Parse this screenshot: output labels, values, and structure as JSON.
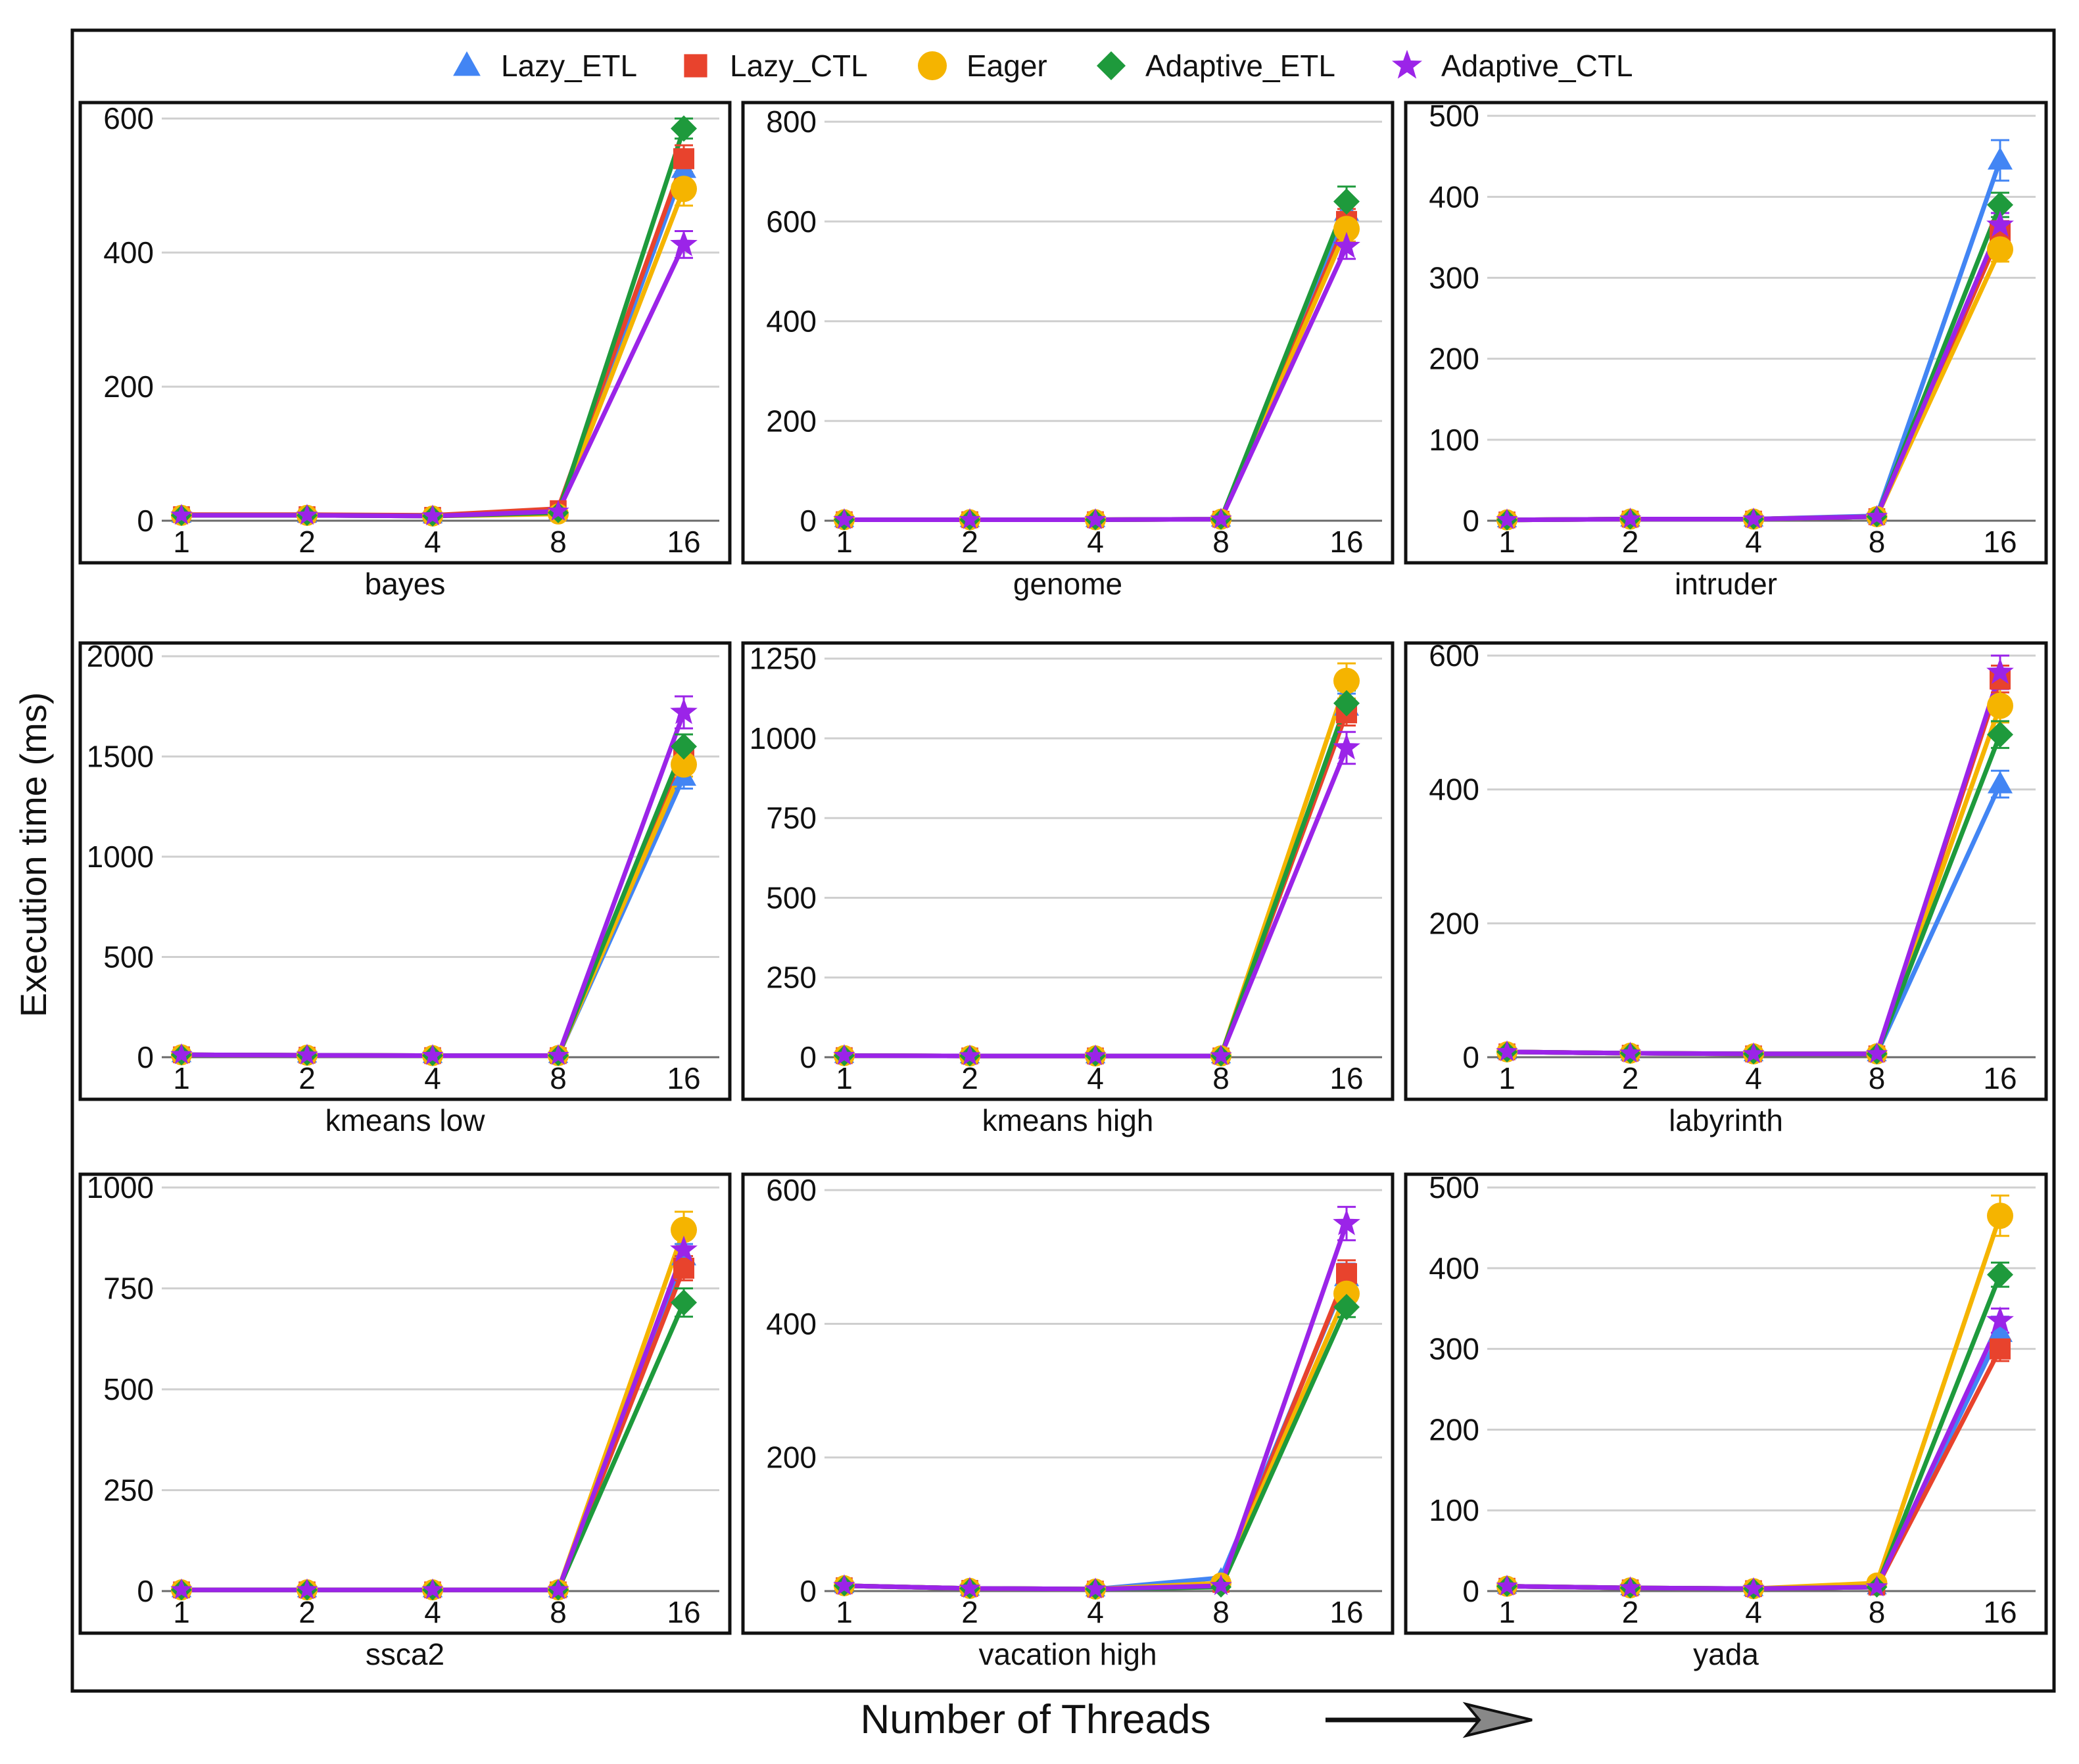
{
  "chart_data": {
    "type": "line",
    "layout": "3x3 small multiples",
    "ylabel": "Execution time (ms)",
    "xlabel": "Number of Threads",
    "x": [
      1,
      2,
      4,
      8,
      16
    ],
    "x_tick_labels": [
      "1",
      "2",
      "4",
      "8",
      "16"
    ],
    "legend": {
      "placement": "top-center",
      "entries": [
        {
          "name": "Lazy_ETL",
          "marker": "triangle",
          "color": "#4285f4"
        },
        {
          "name": "Lazy_CTL",
          "marker": "square",
          "color": "#e8432d"
        },
        {
          "name": "Eager",
          "marker": "circle",
          "color": "#f5b400"
        },
        {
          "name": "Adaptive_ETL",
          "marker": "diamond",
          "color": "#1e9a3c"
        },
        {
          "name": "Adaptive_CTL",
          "marker": "star",
          "color": "#9b24e8"
        }
      ]
    },
    "grid": "horizontal",
    "panels": [
      {
        "name": "bayes",
        "ylim": [
          0,
          610
        ],
        "yticks": [
          0,
          200,
          400,
          600
        ],
        "series": {
          "Lazy_ETL": [
            8,
            8,
            7,
            12,
            525
          ],
          "Lazy_CTL": [
            9,
            9,
            8,
            18,
            540
          ],
          "Eager": [
            8,
            8,
            7,
            10,
            495
          ],
          "Adaptive_ETL": [
            8,
            8,
            7,
            12,
            585
          ],
          "Adaptive_CTL": [
            8,
            8,
            7,
            14,
            412
          ]
        },
        "errors": {
          "Lazy_ETL": 25,
          "Lazy_CTL": 20,
          "Eager": 25,
          "Adaptive_ETL": 15,
          "Adaptive_CTL": 20
        }
      },
      {
        "name": "genome",
        "ylim": [
          0,
          820
        ],
        "yticks": [
          0,
          200,
          400,
          600,
          800
        ],
        "series": {
          "Lazy_ETL": [
            2,
            2,
            2,
            3,
            620
          ],
          "Lazy_CTL": [
            2,
            2,
            2,
            3,
            600
          ],
          "Eager": [
            2,
            2,
            2,
            3,
            585
          ],
          "Adaptive_ETL": [
            2,
            2,
            2,
            3,
            640
          ],
          "Adaptive_CTL": [
            2,
            2,
            2,
            3,
            550
          ]
        },
        "errors": {
          "Lazy_ETL": 25,
          "Lazy_CTL": 25,
          "Eager": 25,
          "Adaptive_ETL": 30,
          "Adaptive_CTL": 25
        }
      },
      {
        "name": "intruder",
        "ylim": [
          0,
          505
        ],
        "yticks": [
          0,
          100,
          200,
          300,
          400,
          500
        ],
        "series": {
          "Lazy_ETL": [
            1,
            2,
            2,
            6,
            445
          ],
          "Lazy_CTL": [
            1,
            2,
            2,
            5,
            355
          ],
          "Eager": [
            1,
            2,
            2,
            5,
            335
          ],
          "Adaptive_ETL": [
            1,
            2,
            2,
            5,
            390
          ],
          "Adaptive_CTL": [
            1,
            2,
            2,
            5,
            365
          ]
        },
        "errors": {
          "Lazy_ETL": 25,
          "Lazy_CTL": 15,
          "Eager": 15,
          "Adaptive_ETL": 15,
          "Adaptive_CTL": 15
        }
      },
      {
        "name": "kmeans low",
        "ylim": [
          0,
          2020
        ],
        "yticks": [
          0,
          500,
          1000,
          1500,
          2000
        ],
        "series": {
          "Lazy_ETL": [
            12,
            10,
            8,
            8,
            1400
          ],
          "Lazy_CTL": [
            12,
            10,
            8,
            8,
            1500
          ],
          "Eager": [
            12,
            10,
            8,
            8,
            1460
          ],
          "Adaptive_ETL": [
            12,
            10,
            8,
            8,
            1550
          ],
          "Adaptive_CTL": [
            12,
            10,
            8,
            8,
            1720
          ]
        },
        "errors": {
          "Lazy_ETL": 60,
          "Lazy_CTL": 60,
          "Eager": 60,
          "Adaptive_ETL": 60,
          "Adaptive_CTL": 80
        }
      },
      {
        "name": "kmeans high",
        "ylim": [
          0,
          1270
        ],
        "yticks": [
          0,
          250,
          500,
          750,
          1000,
          1250
        ],
        "series": {
          "Lazy_ETL": [
            5,
            4,
            4,
            4,
            1100
          ],
          "Lazy_CTL": [
            5,
            4,
            4,
            4,
            1080
          ],
          "Eager": [
            5,
            4,
            4,
            4,
            1180
          ],
          "Adaptive_ETL": [
            5,
            4,
            4,
            4,
            1110
          ],
          "Adaptive_CTL": [
            5,
            4,
            4,
            4,
            970
          ]
        },
        "errors": {
          "Lazy_ETL": 40,
          "Lazy_CTL": 40,
          "Eager": 55,
          "Adaptive_ETL": 40,
          "Adaptive_CTL": 50
        }
      },
      {
        "name": "labyrinth",
        "ylim": [
          0,
          605
        ],
        "yticks": [
          0,
          200,
          400,
          600
        ],
        "series": {
          "Lazy_ETL": [
            8,
            6,
            5,
            5,
            408
          ],
          "Lazy_CTL": [
            8,
            6,
            5,
            5,
            565
          ],
          "Eager": [
            8,
            6,
            5,
            5,
            525
          ],
          "Adaptive_ETL": [
            8,
            6,
            5,
            5,
            482
          ],
          "Adaptive_CTL": [
            8,
            6,
            5,
            5,
            575
          ]
        },
        "errors": {
          "Lazy_ETL": 20,
          "Lazy_CTL": 20,
          "Eager": 25,
          "Adaptive_ETL": 20,
          "Adaptive_CTL": 25
        }
      },
      {
        "name": "ssca2",
        "ylim": [
          0,
          1010
        ],
        "yticks": [
          0,
          250,
          500,
          750,
          1000
        ],
        "series": {
          "Lazy_ETL": [
            3,
            3,
            3,
            3,
            830
          ],
          "Lazy_CTL": [
            3,
            3,
            3,
            3,
            800
          ],
          "Eager": [
            3,
            3,
            3,
            3,
            895
          ],
          "Adaptive_ETL": [
            3,
            3,
            3,
            3,
            715
          ],
          "Adaptive_CTL": [
            3,
            3,
            3,
            3,
            845
          ]
        },
        "errors": {
          "Lazy_ETL": 30,
          "Lazy_CTL": 30,
          "Eager": 45,
          "Adaptive_ETL": 35,
          "Adaptive_CTL": 30
        }
      },
      {
        "name": "vacation high",
        "ylim": [
          0,
          610
        ],
        "yticks": [
          0,
          200,
          400,
          600
        ],
        "series": {
          "Lazy_ETL": [
            8,
            4,
            3,
            20,
            470
          ],
          "Lazy_CTL": [
            8,
            4,
            3,
            10,
            475
          ],
          "Eager": [
            8,
            4,
            3,
            12,
            445
          ],
          "Adaptive_ETL": [
            8,
            4,
            3,
            6,
            425
          ],
          "Adaptive_CTL": [
            8,
            4,
            3,
            8,
            550
          ]
        },
        "errors": {
          "Lazy_ETL": 20,
          "Lazy_CTL": 20,
          "Eager": 25,
          "Adaptive_ETL": 15,
          "Adaptive_CTL": 25
        }
      },
      {
        "name": "yada",
        "ylim": [
          0,
          505
        ],
        "yticks": [
          0,
          100,
          200,
          300,
          400,
          500
        ],
        "series": {
          "Lazy_ETL": [
            6,
            4,
            3,
            5,
            320
          ],
          "Lazy_CTL": [
            6,
            4,
            3,
            5,
            300
          ],
          "Eager": [
            6,
            4,
            3,
            10,
            465
          ],
          "Adaptive_ETL": [
            6,
            4,
            3,
            5,
            392
          ],
          "Adaptive_CTL": [
            6,
            4,
            3,
            5,
            335
          ]
        },
        "errors": {
          "Lazy_ETL": 20,
          "Lazy_CTL": 15,
          "Eager": 25,
          "Adaptive_ETL": 15,
          "Adaptive_CTL": 15
        }
      }
    ]
  }
}
